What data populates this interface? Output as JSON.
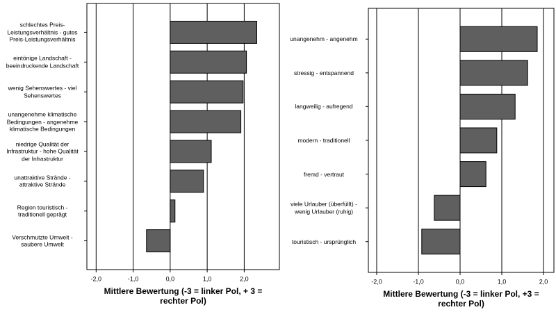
{
  "chart_data": [
    {
      "type": "barh",
      "categories": [
        "schlechtes Preis-Leistungsverhältnis - gutes Preis-Leistungsverhältnis",
        "eintönige Landschaft - beeindruckende Landschaft",
        "wenig Sehenswertes - viel Sehenswertes",
        "unangenehme klimatische Bedingungen - angenehme klimatische Bedingungen",
        "niedrige Qualität der Infrastruktur - hohe Qualität der Infrastruktur",
        "unattraktive Strände - attraktive Strände",
        "Region touristisch - traditionell geprägt",
        "Verschmutzte Umwelt - saubere Umwelt"
      ],
      "values": [
        2.34,
        2.06,
        1.97,
        1.91,
        1.11,
        0.9,
        0.13,
        -0.64
      ],
      "color": "#5f5f5f",
      "xlim": [
        -2.25,
        2.95
      ],
      "xticks": [
        {
          "value": -2,
          "label": "-2,0"
        },
        {
          "value": -1,
          "label": "-1,0"
        },
        {
          "value": 0,
          "label": "0,0"
        },
        {
          "value": 1,
          "label": "1,0"
        },
        {
          "value": 2,
          "label": "2,0"
        }
      ],
      "grid": true,
      "x_label": "Mittlere Bewertung (-3 = linker Pol, + 3 = rechter Pol)"
    },
    {
      "type": "barh",
      "categories": [
        "unangenehm - angenehm",
        "stressig - entspannend",
        "langweilig - aufregend",
        "modern - traditionell",
        "fremd - vertraut",
        "viele Urlauber (überfüllt) - wenig Urlauber (ruhig)",
        "touristisch - ursprünglich"
      ],
      "values": [
        1.85,
        1.62,
        1.32,
        0.88,
        0.62,
        -0.62,
        -0.92
      ],
      "color": "#5f5f5f",
      "xlim": [
        -2.2,
        2.25
      ],
      "xticks": [
        {
          "value": -2,
          "label": "-2,0"
        },
        {
          "value": -1,
          "label": "-1,0"
        },
        {
          "value": 0,
          "label": "0,0"
        },
        {
          "value": 1,
          "label": "1,0"
        },
        {
          "value": 2,
          "label": "2,0"
        }
      ],
      "grid": true,
      "x_label": "Mittlere Bewertung (-3 = linker Pol, +3 = rechter Pol)"
    }
  ]
}
